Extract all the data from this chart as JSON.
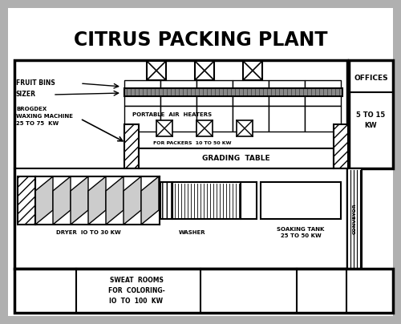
{
  "title": "CITRUS PACKING PLANT",
  "bg_gray": "#b0b0b0",
  "paper_white": "#ffffff",
  "labels": {
    "fruit_bins": "FRUIT BINS",
    "sizer": "SIZER",
    "brogdex": "BROGDEX\nWAXING MACHINE\n25 TO 75  KW",
    "portable_air": "PORTABLE  AIR  HEATERS",
    "for_packers": "FOR PACKERS  10 TO 50 KW",
    "grading_table": "GRADING  TABLE",
    "dryer": "DRYER  IO TO 30 KW",
    "washer": "WASHER",
    "soaking_tank": "SOAKING TANK\n25 TO 50 KW",
    "conveyor": "CONVEYOR",
    "offices": "OFFICES",
    "offices_kw": "5 TO 15\nKW",
    "sweat_rooms": "SWEAT  ROOMS\nFOR  COLORING-\nIO  TO  100  KW"
  },
  "title_fontsize": 17,
  "label_fontsize": 5.5
}
